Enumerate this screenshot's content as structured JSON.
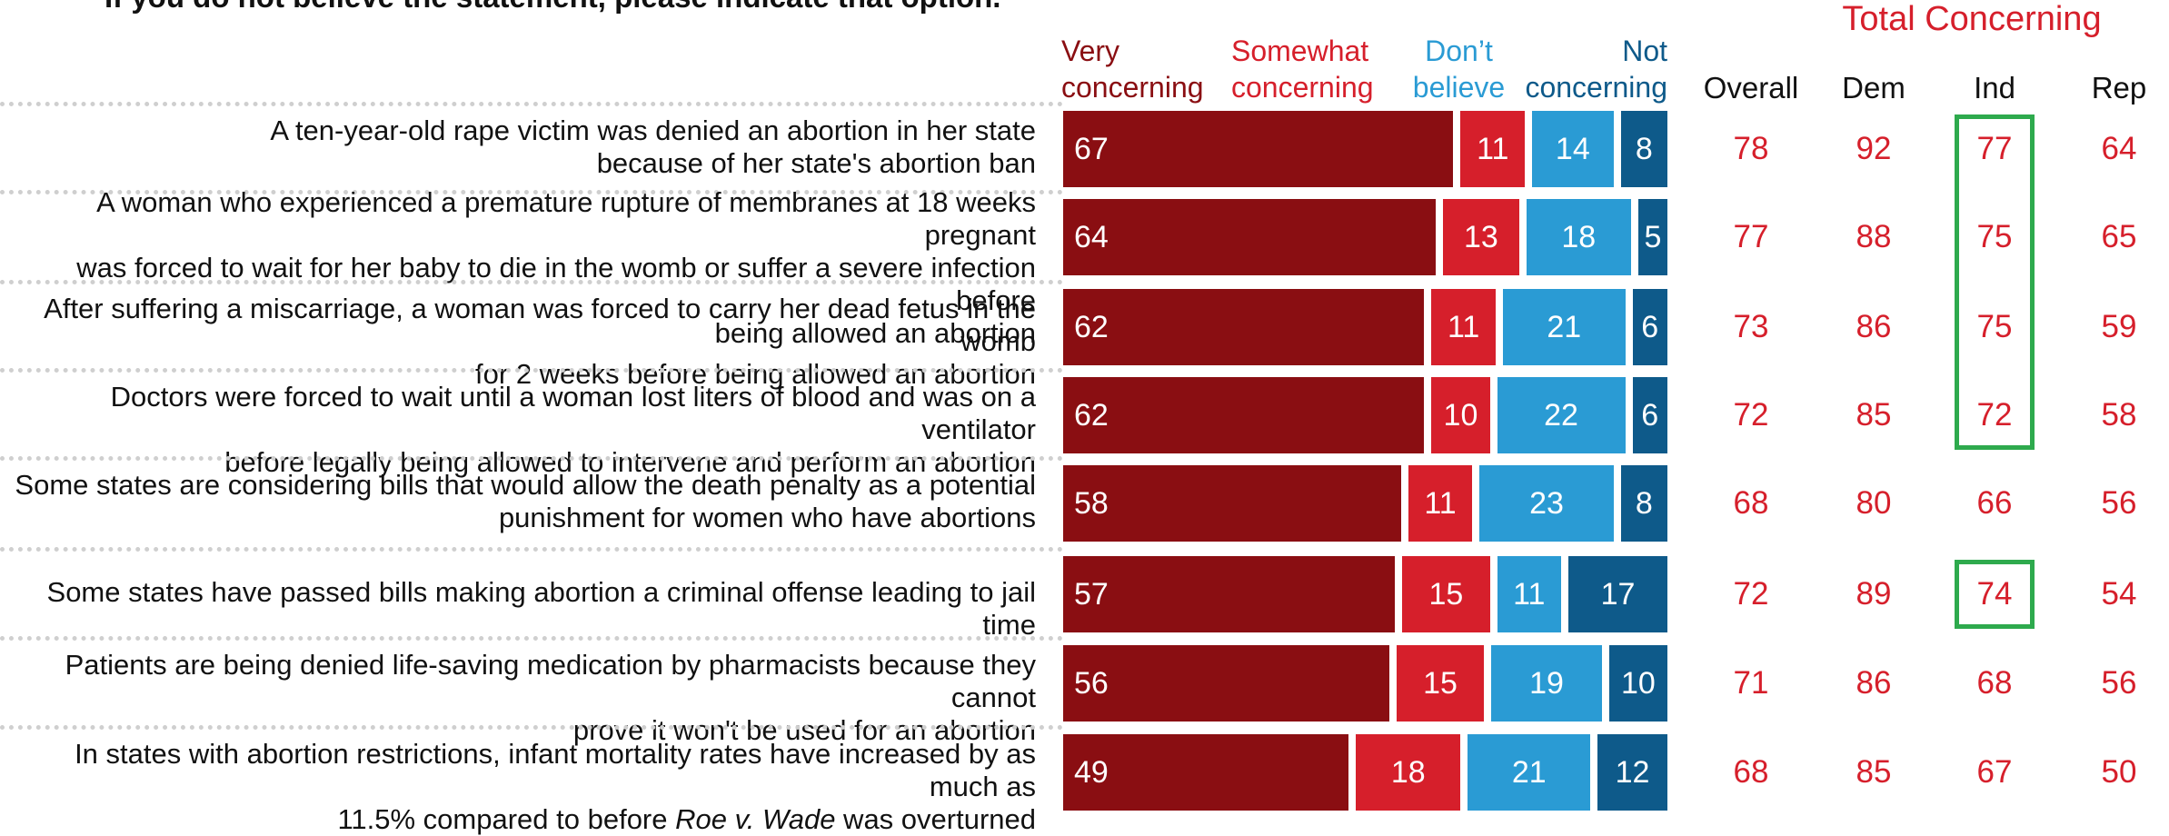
{
  "header": {
    "instruction": "If you do not believe the statement, please indicate that option.",
    "total_title": "Total Concerning"
  },
  "legend": [
    {
      "key": "very",
      "line1": "Very",
      "line2": "concerning",
      "color": "#8a0e12"
    },
    {
      "key": "somewhat",
      "line1": "Somewhat",
      "line2": "concerning",
      "color": "#d61f2b"
    },
    {
      "key": "dont",
      "line1": "Don’t",
      "line2": "believe",
      "color": "#2a9bd4"
    },
    {
      "key": "not",
      "line1": "Not",
      "line2": "concerning",
      "color": "#0e5a8a"
    }
  ],
  "groups": [
    "Overall",
    "Dem",
    "Ind",
    "Rep"
  ],
  "chart_data": {
    "type": "bar",
    "stacked": true,
    "orientation": "horizontal",
    "categories": [
      "A ten-year-old rape victim was denied an abortion in her state because of her state's abortion ban",
      "A woman who experienced a premature rupture of membranes at 18 weeks pregnant was forced to wait for her baby to die in the womb or suffer a severe infection before being allowed an abortion",
      "After suffering a miscarriage, a woman was forced to carry her dead fetus in the womb for 2 weeks before being allowed an abortion",
      "Doctors were forced to wait until a woman lost liters of blood and was on a ventilator before legally being allowed to intervene and perform an abortion",
      "Some states are considering bills that would allow the death penalty as a potential punishment for women who have abortions",
      "Some states have passed bills making abortion a criminal offense leading to jail time",
      "Patients are being denied life-saving medication by pharmacists because they cannot prove it won't be used for an abortion",
      "In states with abortion restrictions, infant mortality rates have increased by as much as 11.5% compared to before Roe v. Wade was overturned"
    ],
    "label_lines": [
      [
        "A ten-year-old rape victim was denied an abortion in her state",
        "because of her state's abortion ban"
      ],
      [
        "A woman who experienced a premature rupture of membranes at 18 weeks pregnant",
        "was forced to wait for her baby to die in the womb or suffer a severe infection before",
        "being allowed an abortion"
      ],
      [
        "After suffering a miscarriage, a woman was forced to carry her dead fetus in the womb",
        "for 2 weeks before being allowed an abortion"
      ],
      [
        "Doctors were forced to wait until a woman lost liters of blood and was on a ventilator",
        "before legally being allowed to intervene and perform an abortion"
      ],
      [
        "Some states are considering bills that would allow the death penalty as a potential",
        "punishment for women who have abortions"
      ],
      [
        "Some states have passed bills making abortion a criminal offense leading to jail time"
      ],
      [
        "Patients are being denied life-saving medication by pharmacists because they cannot",
        "prove it won't be used for an abortion"
      ],
      [
        "In states with abortion restrictions, infant mortality rates have increased by as much as",
        "11.5% compared to before {Roe v. Wade} was overturned"
      ]
    ],
    "series": [
      {
        "name": "Very concerning",
        "values": [
          67,
          64,
          62,
          62,
          58,
          57,
          56,
          49
        ]
      },
      {
        "name": "Somewhat concerning",
        "values": [
          11,
          13,
          11,
          10,
          11,
          15,
          15,
          18
        ]
      },
      {
        "name": "Don’t believe",
        "values": [
          14,
          18,
          21,
          22,
          23,
          11,
          19,
          21
        ]
      },
      {
        "name": "Not concerning",
        "values": [
          8,
          5,
          6,
          6,
          8,
          17,
          10,
          12
        ]
      }
    ],
    "total_concerning": {
      "Overall": [
        78,
        77,
        73,
        72,
        68,
        72,
        71,
        68
      ],
      "Dem": [
        92,
        88,
        86,
        85,
        80,
        89,
        86,
        85
      ],
      "Ind": [
        77,
        75,
        75,
        72,
        66,
        74,
        68,
        67
      ],
      "Rep": [
        64,
        65,
        59,
        58,
        56,
        54,
        56,
        50
      ]
    },
    "highlights": [
      {
        "group": "Ind",
        "rows": [
          0,
          3
        ],
        "color": "#2eaa4d"
      },
      {
        "group": "Ind",
        "rows": [
          5,
          5
        ],
        "color": "#2eaa4d"
      }
    ]
  }
}
